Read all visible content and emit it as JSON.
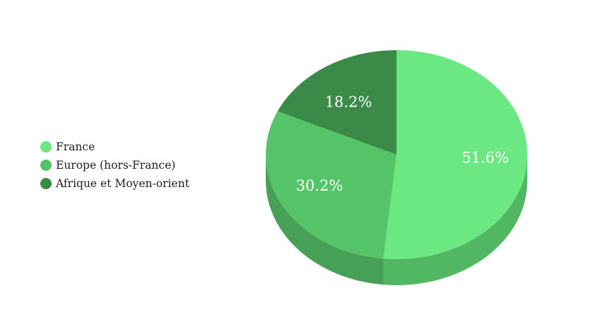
{
  "chart_data": {
    "type": "pie",
    "style": "3d",
    "categories": [
      "France",
      "Europe (hors-France)",
      "Afrique et Moyen-orient"
    ],
    "values": [
      51.6,
      30.2,
      18.2
    ],
    "labels": [
      "51.6%",
      "30.2%",
      "18.2%"
    ],
    "colors": [
      "#6be882",
      "#55c468",
      "#3b8a47"
    ],
    "side_colors": [
      "#52b763",
      "#46a055",
      "#2f6f3a"
    ],
    "legend_position": "left"
  }
}
